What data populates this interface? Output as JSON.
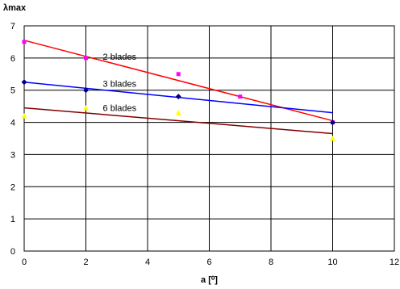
{
  "chart_data": {
    "type": "scatter",
    "ylabel": "λmax",
    "xlabel": "a [⁰]",
    "xlim": [
      0,
      12
    ],
    "ylim": [
      0,
      7
    ],
    "x_ticks": [
      "0",
      "2",
      "4",
      "6",
      "8",
      "10",
      "12"
    ],
    "y_ticks": [
      "0",
      "1",
      "2",
      "3",
      "4",
      "5",
      "6",
      "7"
    ],
    "grid": true,
    "legend": "inline labels near lines",
    "series": [
      {
        "name": "2 blades",
        "color": "#ff00ff",
        "marker": "square",
        "points": [
          [
            0,
            6.5
          ],
          [
            2,
            6.0
          ],
          [
            5,
            5.5
          ],
          [
            7,
            4.8
          ],
          [
            10,
            4.0
          ]
        ],
        "trendline": {
          "color": "#ff0000",
          "from": [
            0,
            6.55
          ],
          "to": [
            10,
            4.05
          ]
        }
      },
      {
        "name": "3 blades",
        "color": "#000080",
        "marker": "diamond",
        "points": [
          [
            0,
            5.25
          ],
          [
            2,
            5.0
          ],
          [
            5,
            4.8
          ],
          [
            10,
            4.0
          ]
        ],
        "trendline": {
          "color": "#0000ff",
          "from": [
            0,
            5.25
          ],
          "to": [
            10,
            4.3
          ]
        }
      },
      {
        "name": "6 blades",
        "color": "#ffff00",
        "marker": "triangle",
        "points": [
          [
            0,
            4.2
          ],
          [
            2,
            4.45
          ],
          [
            5,
            4.3
          ],
          [
            10,
            3.5
          ]
        ],
        "trendline": {
          "color": "#800000",
          "from": [
            0,
            4.45
          ],
          "to": [
            10,
            3.65
          ]
        }
      }
    ]
  }
}
